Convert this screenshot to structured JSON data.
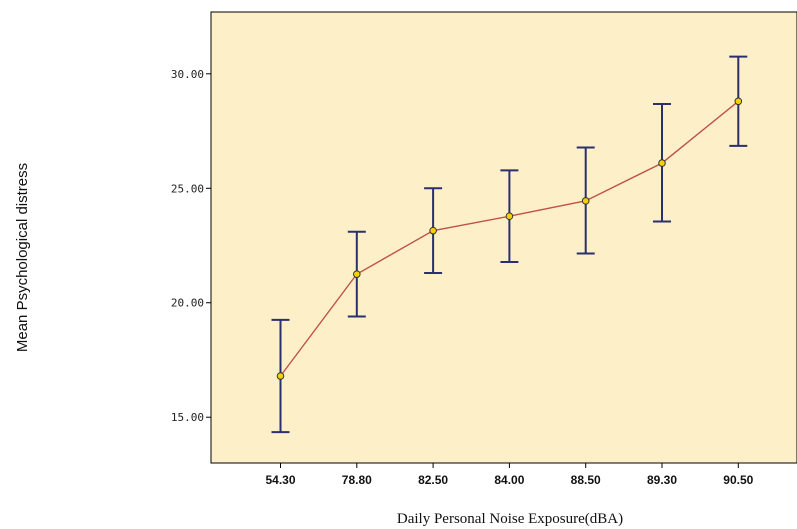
{
  "chart_data": {
    "type": "line",
    "title": "",
    "xlabel": "Daily Personal Noise Exposure(dBA)",
    "ylabel": "Mean Psychological distress",
    "categories": [
      "54.30",
      "78.80",
      "82.50",
      "84.00",
      "88.50",
      "89.30",
      "90.50"
    ],
    "yticks": [
      "15.00",
      "20.00",
      "25.00",
      "30.00"
    ],
    "ylim": [
      13.0,
      32.7
    ],
    "series": [
      {
        "values": [
          16.8,
          21.25,
          23.15,
          23.78,
          24.45,
          26.1,
          28.8
        ],
        "error_low": [
          14.35,
          19.4,
          21.3,
          21.78,
          22.15,
          23.55,
          26.85
        ],
        "error_high": [
          19.25,
          23.1,
          25.0,
          25.78,
          26.78,
          28.68,
          30.75
        ]
      }
    ],
    "grid": false,
    "legend": "none",
    "colors": {
      "plot_background": "#fdf0c8",
      "line": "#c0504d",
      "marker_fill": "#f2d200",
      "marker_stroke": "#333333",
      "error_bar": "#2b2f6e",
      "axis": "#000000"
    }
  }
}
